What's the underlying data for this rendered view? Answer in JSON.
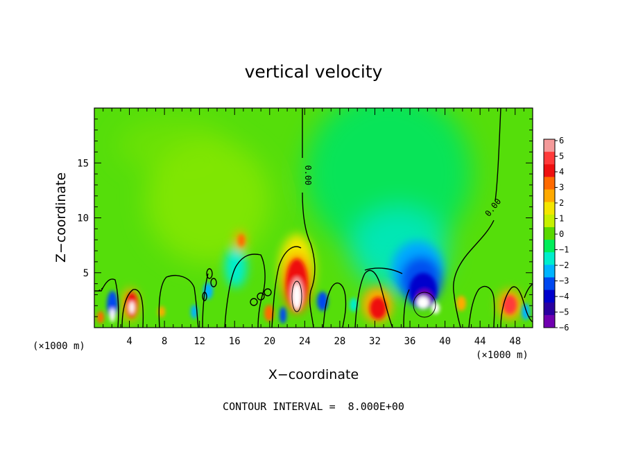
{
  "chart_data": {
    "type": "heatmap",
    "title": "vertical velocity",
    "xlabel": "X−coordinate",
    "ylabel": "Z−coordinate",
    "x_unit_left": "(×1000 m)",
    "x_unit_right": "(×1000 m)",
    "xlim": [
      0,
      50
    ],
    "ylim": [
      0,
      20
    ],
    "xticks": [
      4,
      8,
      12,
      16,
      20,
      24,
      28,
      32,
      36,
      40,
      44,
      48
    ],
    "yticks": [
      5,
      10,
      15
    ],
    "note": "CONTOUR INTERVAL =  8.000E+00",
    "contour_label_values": [
      "0.00",
      "0.00"
    ],
    "colorbar": {
      "labels": [
        "6",
        "5",
        "4",
        "3",
        "2",
        "1",
        "0",
        "−1",
        "−2",
        "−3",
        "−4",
        "−5",
        "−6"
      ],
      "colors": [
        "#f49a9a",
        "#ff3a3a",
        "#ee1010",
        "#ff6a00",
        "#ffaa00",
        "#f4e600",
        "#c6f000",
        "#5ad800",
        "#00ee5a",
        "#00eecc",
        "#00b4ff",
        "#0048f0",
        "#0000cc",
        "#2a00a0",
        "#7000b0"
      ]
    },
    "features": [
      {
        "x": 22.5,
        "z": 3.0,
        "w": 4.6,
        "name": "updraft core near x=22"
      },
      {
        "x": 38.0,
        "z": 2.5,
        "w": -5.6,
        "name": "downdraft core near x=38"
      },
      {
        "x": 4.2,
        "z": 2.1,
        "w": 4.0
      },
      {
        "x": 2.3,
        "z": 1.7,
        "w": -4.2
      },
      {
        "x": 31.0,
        "z": 1.7,
        "w": 2.6
      },
      {
        "x": 47.0,
        "z": 1.6,
        "w": 2.4
      },
      {
        "x": 16.5,
        "z": 7.8,
        "w": 1.8
      }
    ]
  }
}
